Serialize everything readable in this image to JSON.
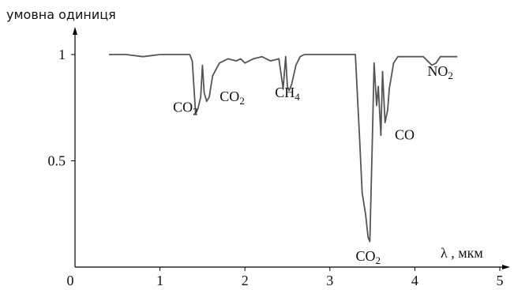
{
  "chart_data": {
    "type": "line",
    "ylabel": "умовна одиниця",
    "xlabel": "λ , мкм",
    "xlim": [
      0,
      5
    ],
    "ylim": [
      0,
      1.1
    ],
    "x_ticks": [
      0,
      1,
      2,
      3,
      4,
      5
    ],
    "x_tick_labels": [
      "0",
      "1",
      "2",
      "3",
      "4",
      "5"
    ],
    "y_ticks": [
      0.5,
      1
    ],
    "y_tick_labels": [
      "0.5",
      "1"
    ],
    "series": [
      {
        "x": [
          0.4,
          0.6,
          0.8,
          1.0,
          1.2,
          1.35,
          1.38,
          1.42,
          1.45,
          1.48,
          1.5,
          1.52,
          1.55,
          1.58,
          1.62,
          1.7,
          1.8,
          1.9,
          1.95,
          2.0,
          2.05,
          2.1,
          2.2,
          2.3,
          2.4,
          2.45,
          2.48,
          2.5,
          2.52,
          2.55,
          2.6,
          2.65,
          2.7,
          2.8,
          2.9,
          3.0,
          3.1,
          3.2,
          3.3,
          3.35,
          3.38,
          3.4,
          3.42,
          3.45,
          3.47,
          3.5,
          3.52,
          3.55,
          3.57,
          3.6,
          3.62,
          3.65,
          3.68,
          3.7,
          3.75,
          3.8,
          3.9,
          4.0,
          4.1,
          4.15,
          4.2,
          4.25,
          4.3,
          4.4,
          4.5
        ],
        "y": [
          1.0,
          1.0,
          0.99,
          1.0,
          1.0,
          1.0,
          0.97,
          0.72,
          0.75,
          0.8,
          0.95,
          0.82,
          0.78,
          0.8,
          0.9,
          0.96,
          0.98,
          0.97,
          0.98,
          0.96,
          0.97,
          0.98,
          0.99,
          0.97,
          0.98,
          0.84,
          0.99,
          0.85,
          0.83,
          0.86,
          0.95,
          0.99,
          1.0,
          1.0,
          1.0,
          1.0,
          1.0,
          1.0,
          1.0,
          0.6,
          0.35,
          0.3,
          0.25,
          0.14,
          0.12,
          0.6,
          0.96,
          0.76,
          0.85,
          0.62,
          0.92,
          0.68,
          0.74,
          0.84,
          0.96,
          0.99,
          0.99,
          0.99,
          0.99,
          0.97,
          0.95,
          0.96,
          0.99,
          0.99,
          0.99
        ]
      }
    ],
    "annotations": [
      {
        "base": "CO",
        "sub": "2",
        "x": 1.3,
        "y": 0.73
      },
      {
        "base": "CO",
        "sub": "2",
        "x": 1.85,
        "y": 0.78
      },
      {
        "base": "CH",
        "sub": "4",
        "x": 2.5,
        "y": 0.8
      },
      {
        "base": "CO",
        "sub": "2",
        "x": 3.45,
        "y": 0.03
      },
      {
        "base": "CO",
        "sub": "",
        "x": 3.88,
        "y": 0.6
      },
      {
        "base": "NO",
        "sub": "2",
        "x": 4.3,
        "y": 0.9
      }
    ]
  }
}
